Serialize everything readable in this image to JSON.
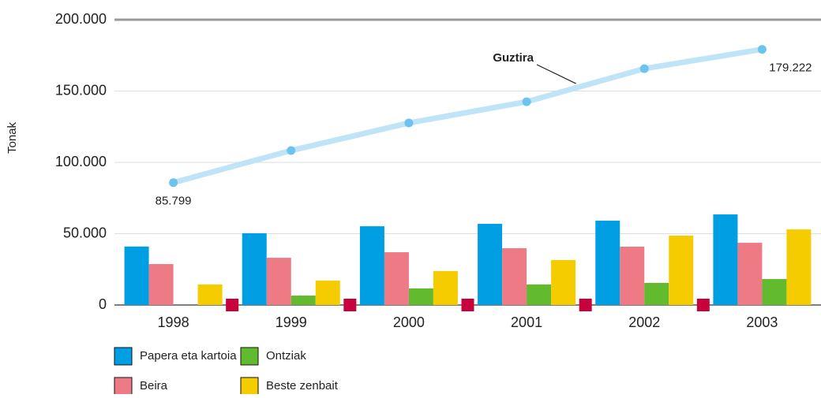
{
  "chart_data": {
    "type": "bar",
    "y_label": "Tonak",
    "categories": [
      "1998",
      "1999",
      "2000",
      "2001",
      "2002",
      "2003"
    ],
    "series": [
      {
        "name": "Papera eta kartoia",
        "color": "#009fe3",
        "values": [
          41000,
          50300,
          55200,
          56900,
          59100,
          63500
        ]
      },
      {
        "name": "Beira",
        "color": "#ee7a85",
        "values": [
          28700,
          33100,
          37000,
          39800,
          40900,
          43600
        ]
      },
      {
        "name": "Ontziak",
        "color": "#62bb2f",
        "values": [
          null,
          6600,
          11600,
          14400,
          15500,
          18200
        ]
      },
      {
        "name": "Beste zenbait",
        "color": "#f5cc00",
        "values": [
          14400,
          17100,
          23800,
          31500,
          48600,
          53000
        ]
      },
      {
        "name": "Guztira",
        "type": "line",
        "color": "#bfe3f7",
        "marker_color": "#6cc4ee",
        "values": [
          85799,
          108300,
          127600,
          142500,
          165700,
          179222
        ],
        "value_labels": [
          "85.799",
          null,
          null,
          null,
          null,
          "179.222"
        ]
      }
    ],
    "ylim": [
      0,
      200000
    ],
    "yticks": [
      0,
      {
        "value": 50000,
        "label": "50.000"
      },
      {
        "value": 100000,
        "label": "100.000"
      },
      {
        "value": 150000,
        "label": "150.000"
      },
      {
        "value": 200000,
        "label": "200.000"
      }
    ],
    "grid": true
  }
}
